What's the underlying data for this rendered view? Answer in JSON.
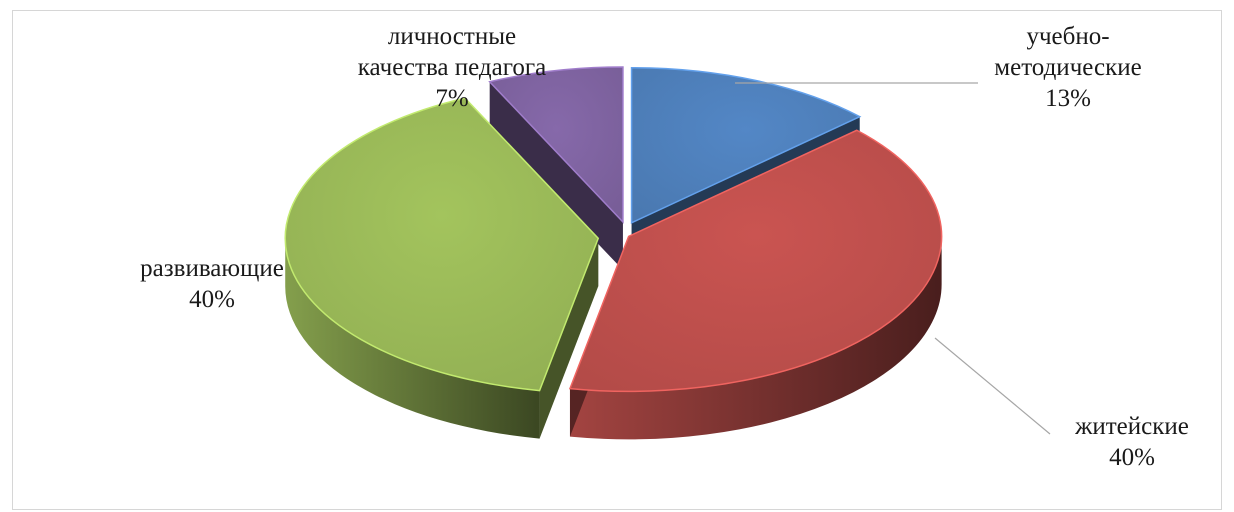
{
  "chart_data": {
    "type": "pie",
    "style": "3d-exploded",
    "title": "",
    "legend": "none",
    "slices": [
      {
        "label_lines": [
          "учебно-",
          "методические"
        ],
        "value": 13,
        "value_label": "13%",
        "color": "#4f81bd"
      },
      {
        "label_lines": [
          "житейские"
        ],
        "value": 40,
        "value_label": "40%",
        "color": "#c0504d"
      },
      {
        "label_lines": [
          "развивающие"
        ],
        "value": 40,
        "value_label": "40%",
        "color": "#9bbb59"
      },
      {
        "label_lines": [
          "личностные",
          "качества педагога"
        ],
        "value": 7,
        "value_label": "7%",
        "color": "#8064a2"
      }
    ]
  }
}
